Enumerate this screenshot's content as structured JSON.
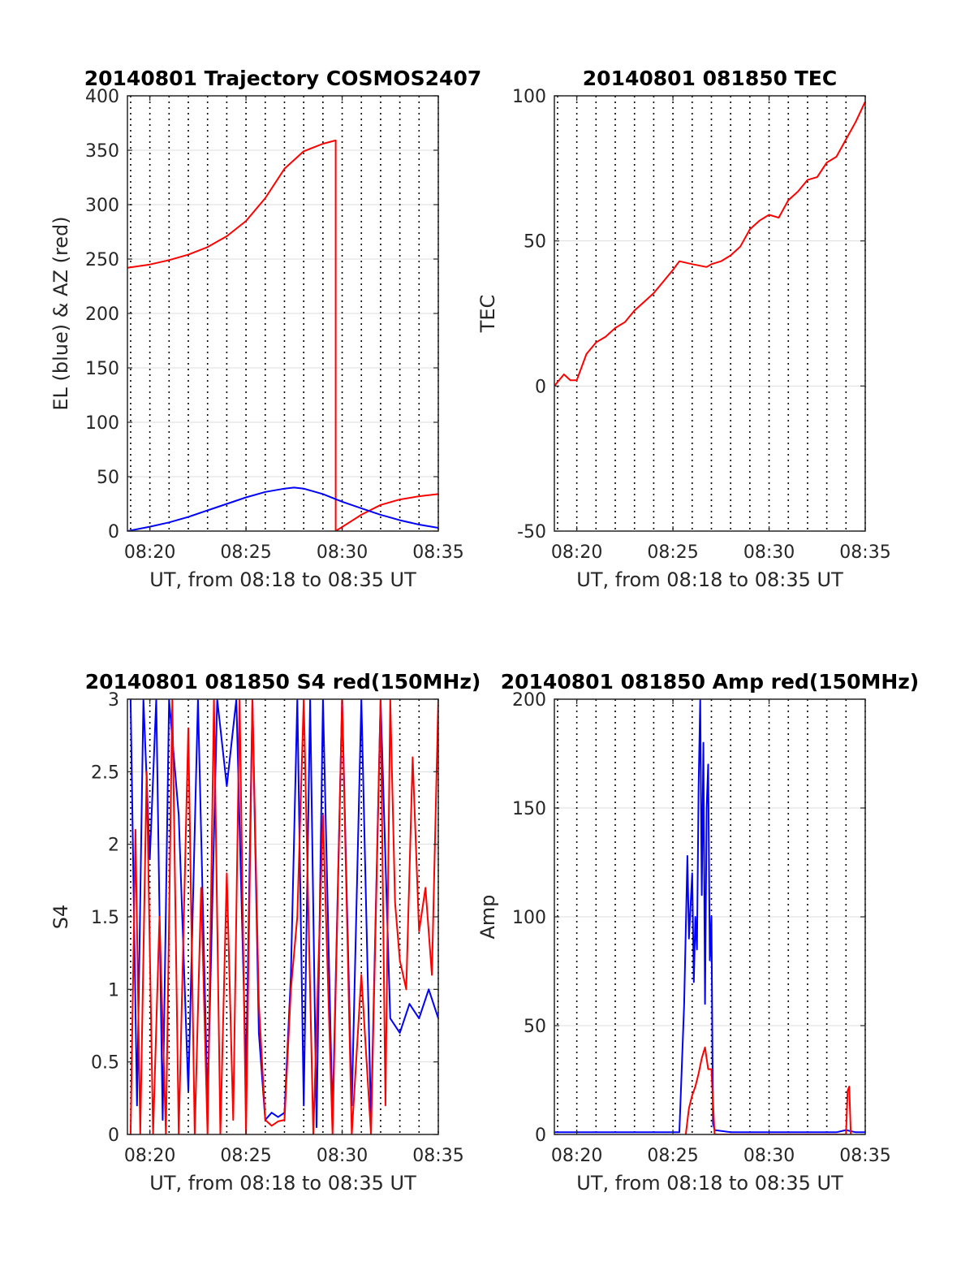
{
  "figure": {
    "background": "#ffffff",
    "colors": {
      "red": "#ff0000",
      "blue": "#0000ff",
      "grid_h": "#dddddd",
      "grid_v": "#000000",
      "axis": "#262626"
    }
  },
  "chart_data": [
    {
      "id": "trajectory",
      "type": "line",
      "title": "20140801 Trajectory COSMOS2407",
      "xlabel": "UT, from 08:18 to 08:35 UT",
      "ylabel": "EL (blue) & AZ (red)",
      "xlim": [
        "08:18:50",
        "08:35:00"
      ],
      "ylim": [
        0,
        400
      ],
      "yticks": [
        "0",
        "50",
        "100",
        "150",
        "200",
        "250",
        "300",
        "350",
        "400"
      ],
      "xticks": [
        "08:20",
        "08:25",
        "08:30",
        "08:35"
      ],
      "vlines": [
        "08:19",
        "08:20",
        "08:21",
        "08:22",
        "08:23",
        "08:24",
        "08:25",
        "08:26",
        "08:27",
        "08:28",
        "08:29",
        "08:30",
        "08:31",
        "08:32",
        "08:33",
        "08:34",
        "08:35"
      ],
      "grid": true,
      "series": [
        {
          "color": "#ff0000",
          "x": [
            "08:18:50",
            "08:20:00",
            "08:21:00",
            "08:22:00",
            "08:23:00",
            "08:24:00",
            "08:25:00",
            "08:26:00",
            "08:27:00",
            "08:28:00",
            "08:29:00",
            "08:29:40",
            "08:29:40",
            "08:31:00",
            "08:32:00",
            "08:33:00",
            "08:34:00",
            "08:35:00"
          ],
          "y": [
            242,
            245,
            249,
            254,
            261,
            271,
            285,
            306,
            333,
            349,
            356,
            359,
            0,
            15,
            24,
            29,
            32,
            34
          ]
        },
        {
          "color": "#0000ff",
          "x": [
            "08:18:50",
            "08:20:00",
            "08:21:00",
            "08:22:00",
            "08:23:00",
            "08:24:00",
            "08:25:00",
            "08:26:00",
            "08:27:00",
            "08:27:30",
            "08:28:00",
            "08:29:00",
            "08:30:00",
            "08:31:00",
            "08:32:00",
            "08:33:00",
            "08:34:00",
            "08:35:00"
          ],
          "y": [
            0,
            4,
            8,
            13,
            19,
            25,
            31,
            36,
            39,
            40,
            39,
            34,
            27,
            21,
            15,
            10,
            6,
            3
          ]
        }
      ]
    },
    {
      "id": "tec",
      "type": "line",
      "title": "20140801 081850 TEC",
      "xlabel": "UT, from 08:18 to 08:35 UT",
      "ylabel": "TEC",
      "xlim": [
        "08:18:50",
        "08:35:00"
      ],
      "ylim": [
        -50,
        100
      ],
      "yticks": [
        "-50",
        "0",
        "50",
        "100"
      ],
      "xticks": [
        "08:20",
        "08:25",
        "08:30",
        "08:35"
      ],
      "vlines": [
        "08:19",
        "08:20",
        "08:21",
        "08:22",
        "08:23",
        "08:24",
        "08:25",
        "08:26",
        "08:27",
        "08:28",
        "08:29",
        "08:30",
        "08:31",
        "08:32",
        "08:33",
        "08:34",
        "08:35"
      ],
      "grid": true,
      "series": [
        {
          "color": "#ff0000",
          "x": [
            "08:18:50",
            "08:19:20",
            "08:19:40",
            "08:20:00",
            "08:20:30",
            "08:21:00",
            "08:21:30",
            "08:22:00",
            "08:22:30",
            "08:23:00",
            "08:23:30",
            "08:24:00",
            "08:24:30",
            "08:25:00",
            "08:25:20",
            "08:26:00",
            "08:26:45",
            "08:27:00",
            "08:27:30",
            "08:28:00",
            "08:28:30",
            "08:29:00",
            "08:29:30",
            "08:30:00",
            "08:30:30",
            "08:31:00",
            "08:31:30",
            "08:32:00",
            "08:32:30",
            "08:33:00",
            "08:33:30",
            "08:34:00",
            "08:34:30",
            "08:35:00"
          ],
          "y": [
            0,
            4,
            2,
            2,
            11,
            15,
            17,
            20,
            22,
            26,
            29,
            32,
            36,
            40,
            43,
            42,
            41,
            42,
            43,
            45,
            48,
            54,
            57,
            59,
            58,
            64,
            67,
            71,
            72,
            77,
            79,
            85,
            91,
            98
          ]
        }
      ]
    },
    {
      "id": "s4",
      "type": "line",
      "title": "20140801 081850 S4 red(150MHz)",
      "xlabel": "UT, from 08:18 to 08:35 UT",
      "ylabel": "S4",
      "xlim": [
        "08:18:50",
        "08:35:00"
      ],
      "ylim": [
        0,
        3
      ],
      "yticks": [
        "0",
        "0.5",
        "1",
        "1.5",
        "2",
        "2.5",
        "3"
      ],
      "xticks": [
        "08:20",
        "08:25",
        "08:30",
        "08:35"
      ],
      "vlines": [
        "08:19",
        "08:20",
        "08:21",
        "08:22",
        "08:23",
        "08:24",
        "08:25",
        "08:26",
        "08:27",
        "08:28",
        "08:29",
        "08:30",
        "08:31",
        "08:32",
        "08:33",
        "08:34",
        "08:35"
      ],
      "grid": true,
      "series": [
        {
          "color": "#0000ff",
          "x": [
            "08:19:00",
            "08:19:20",
            "08:19:40",
            "08:20:00",
            "08:20:20",
            "08:20:40",
            "08:21:00",
            "08:21:30",
            "08:22:00",
            "08:22:30",
            "08:23:00",
            "08:23:30",
            "08:24:00",
            "08:24:30",
            "08:25:00",
            "08:25:20",
            "08:25:40",
            "08:26:00",
            "08:26:20",
            "08:26:40",
            "08:27:00",
            "08:27:20",
            "08:27:40",
            "08:28:00",
            "08:28:20",
            "08:28:40",
            "08:29:00",
            "08:29:30",
            "08:30:00",
            "08:30:30",
            "08:31:00",
            "08:31:30",
            "08:32:00",
            "08:32:30",
            "08:33:00",
            "08:33:30",
            "08:34:00",
            "08:34:30",
            "08:35:00"
          ],
          "y": [
            3,
            0.2,
            3,
            1.9,
            3,
            0.1,
            3,
            2.2,
            0.3,
            3,
            0.2,
            3,
            2.4,
            3,
            0.4,
            3,
            0.7,
            0.1,
            0.15,
            0.12,
            0.15,
            1.1,
            3,
            0.2,
            3,
            0.05,
            3,
            0.1,
            3,
            0.2,
            3,
            0.1,
            3,
            0.8,
            0.7,
            0.9,
            0.8,
            1.0,
            0.8
          ]
        },
        {
          "color": "#ff0000",
          "x": [
            "08:19:00",
            "08:19:15",
            "08:19:30",
            "08:19:50",
            "08:20:10",
            "08:20:30",
            "08:20:50",
            "08:21:10",
            "08:21:30",
            "08:22:00",
            "08:22:20",
            "08:22:40",
            "08:23:00",
            "08:23:20",
            "08:23:40",
            "08:24:00",
            "08:24:20",
            "08:24:40",
            "08:25:00",
            "08:25:20",
            "08:25:40",
            "08:26:00",
            "08:26:20",
            "08:26:40",
            "08:27:00",
            "08:27:20",
            "08:27:40",
            "08:28:00",
            "08:28:30",
            "08:29:00",
            "08:29:30",
            "08:30:00",
            "08:30:30",
            "08:31:00",
            "08:31:30",
            "08:32:00",
            "08:32:15",
            "08:32:30",
            "08:32:45",
            "08:33:00",
            "08:33:20",
            "08:33:40",
            "08:34:00",
            "08:34:20",
            "08:34:40",
            "08:35:00"
          ],
          "y": [
            0,
            2.1,
            0,
            2.5,
            0,
            1.5,
            0,
            3,
            0,
            2.8,
            0,
            1.7,
            0,
            3,
            0,
            1.8,
            0.1,
            3,
            0,
            3,
            0.9,
            0.1,
            0.06,
            0.09,
            0.1,
            1.0,
            1.5,
            3,
            0,
            2.2,
            0,
            3,
            0,
            1.1,
            0,
            3,
            0.2,
            3,
            1.6,
            1.2,
            1.0,
            2.6,
            1.4,
            1.7,
            1.1,
            3
          ]
        }
      ]
    },
    {
      "id": "amp",
      "type": "line",
      "title": "20140801 081850 Amp red(150MHz)",
      "xlabel": "UT, from 08:18 to 08:35 UT",
      "ylabel": "Amp",
      "xlim": [
        "08:18:50",
        "08:35:00"
      ],
      "ylim": [
        0,
        200
      ],
      "yticks": [
        "0",
        "50",
        "100",
        "150",
        "200"
      ],
      "xticks": [
        "08:20",
        "08:25",
        "08:30",
        "08:35"
      ],
      "vlines": [
        "08:19",
        "08:20",
        "08:21",
        "08:22",
        "08:23",
        "08:24",
        "08:25",
        "08:26",
        "08:27",
        "08:28",
        "08:29",
        "08:30",
        "08:31",
        "08:32",
        "08:33",
        "08:34",
        "08:35"
      ],
      "grid": true,
      "series": [
        {
          "color": "#0000ff",
          "x": [
            "08:18:50",
            "08:20:00",
            "08:22:00",
            "08:24:00",
            "08:25:20",
            "08:25:35",
            "08:25:45",
            "08:25:50",
            "08:26:00",
            "08:26:05",
            "08:26:10",
            "08:26:15",
            "08:26:20",
            "08:26:25",
            "08:26:30",
            "08:26:35",
            "08:26:40",
            "08:26:45",
            "08:26:50",
            "08:26:55",
            "08:27:00",
            "08:27:05",
            "08:27:10",
            "08:28:00",
            "08:30:00",
            "08:32:00",
            "08:33:30",
            "08:34:00",
            "08:34:30",
            "08:35:00"
          ],
          "y": [
            1,
            1,
            1,
            1,
            1,
            60,
            128,
            90,
            120,
            70,
            100,
            85,
            160,
            200,
            110,
            180,
            60,
            150,
            170,
            80,
            100,
            5,
            2,
            1,
            1,
            1,
            1,
            2,
            1,
            1
          ]
        },
        {
          "color": "#ff0000",
          "x": [
            "08:25:40",
            "08:25:50",
            "08:26:00",
            "08:26:10",
            "08:26:20",
            "08:26:30",
            "08:26:40",
            "08:26:50",
            "08:27:00",
            "08:27:10",
            "08:34:00",
            "08:34:05",
            "08:34:10",
            "08:34:15"
          ],
          "y": [
            0,
            12,
            18,
            22,
            28,
            35,
            40,
            30,
            30,
            0,
            0,
            20,
            22,
            0
          ]
        }
      ]
    }
  ]
}
